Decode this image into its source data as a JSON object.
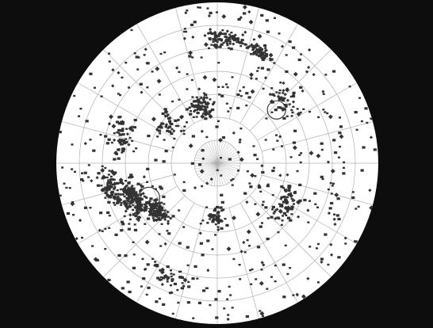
{
  "map": {
    "type": "polar-sky-chart",
    "background_color": "#0d0d0d",
    "disc_color": "#ffffff",
    "grid_color": "#b0b0b0",
    "star_color": "#333333",
    "marker_color": "#333333",
    "grid": {
      "declination_rings_deg": [
        0,
        15,
        30,
        45,
        60,
        75
      ],
      "ra_meridians": 24
    },
    "markers": [
      {
        "name": "circle-marker-left",
        "ra_hours": 13.8,
        "dec_deg": 40,
        "radius_deg": 7
      },
      {
        "name": "circle-marker-upper-right",
        "ra_hours": 2.8,
        "dec_deg": 38,
        "radius_deg": 6
      }
    ],
    "clusters": [
      {
        "ra_hours": 13.5,
        "dec_deg": 30,
        "spread_deg": 13,
        "count": 180
      },
      {
        "ra_hours": 14.6,
        "dec_deg": 40,
        "spread_deg": 10,
        "count": 120
      },
      {
        "ra_hours": 12.8,
        "dec_deg": 18,
        "spread_deg": 10,
        "count": 70
      },
      {
        "ra_hours": 11.0,
        "dec_deg": 25,
        "spread_deg": 12,
        "count": 50
      },
      {
        "ra_hours": 5.8,
        "dec_deg": 8,
        "spread_deg": 9,
        "count": 80
      },
      {
        "ra_hours": 4.6,
        "dec_deg": 12,
        "spread_deg": 8,
        "count": 55
      },
      {
        "ra_hours": 7.0,
        "dec_deg": 52,
        "spread_deg": 14,
        "count": 70
      },
      {
        "ra_hours": 22.0,
        "dec_deg": 38,
        "spread_deg": 14,
        "count": 60
      },
      {
        "ra_hours": 18.0,
        "dec_deg": 55,
        "spread_deg": 14,
        "count": 45
      },
      {
        "ra_hours": 2.8,
        "dec_deg": 30,
        "spread_deg": 13,
        "count": 50
      },
      {
        "ra_hours": 9.5,
        "dec_deg": 50,
        "spread_deg": 15,
        "count": 40
      },
      {
        "ra_hours": 16.5,
        "dec_deg": 10,
        "spread_deg": 12,
        "count": 40
      }
    ],
    "background_star_count": 520,
    "seed": 7
  }
}
